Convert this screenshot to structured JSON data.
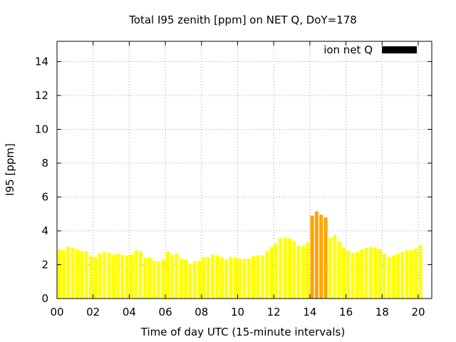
{
  "chart_data": {
    "type": "bar",
    "title": "Total I95 zenith [ppm] on NET Q, DoY=178",
    "xlabel": "Time of day UTC (15-minute intervals)",
    "ylabel": "I95 [ppm]",
    "legend": {
      "label": "ion net Q",
      "color": "#000000",
      "placement": "top-right"
    },
    "xlim": [
      0,
      20.75
    ],
    "ylim": [
      0,
      15.2
    ],
    "x_ticks": [
      0,
      2,
      4,
      6,
      8,
      10,
      12,
      14,
      16,
      18,
      20
    ],
    "x_tick_labels": [
      "00",
      "02",
      "04",
      "06",
      "08",
      "10",
      "12",
      "14",
      "16",
      "18",
      "20"
    ],
    "y_ticks": [
      0,
      2,
      4,
      6,
      8,
      10,
      12,
      14
    ],
    "y_tick_labels": [
      "0",
      "2",
      "4",
      "6",
      "8",
      "10",
      "12",
      "14"
    ],
    "grid": true,
    "colors": {
      "normal": "#ffff00",
      "elevated": "#ffa500"
    },
    "bar_width_hours": 0.2,
    "values": [
      2.9,
      2.85,
      3.05,
      3.0,
      2.9,
      2.8,
      2.8,
      2.5,
      2.45,
      2.7,
      2.75,
      2.7,
      2.6,
      2.65,
      2.6,
      2.55,
      2.6,
      2.85,
      2.8,
      2.4,
      2.45,
      2.25,
      2.2,
      2.3,
      2.8,
      2.6,
      2.65,
      2.35,
      2.3,
      2.05,
      2.2,
      2.25,
      2.45,
      2.45,
      2.6,
      2.55,
      2.45,
      2.3,
      2.45,
      2.4,
      2.35,
      2.35,
      2.35,
      2.5,
      2.55,
      2.55,
      2.8,
      3.05,
      3.25,
      3.55,
      3.6,
      3.55,
      3.4,
      3.1,
      3.1,
      3.3,
      4.9,
      5.15,
      4.95,
      4.8,
      3.6,
      3.75,
      3.4,
      3.0,
      2.85,
      2.7,
      2.75,
      2.9,
      3.0,
      3.05,
      3.0,
      2.9,
      2.65,
      2.45,
      2.55,
      2.65,
      2.75,
      2.85,
      2.85,
      2.95,
      3.15
    ],
    "elevated_indices": [
      56,
      57,
      58,
      59
    ]
  }
}
